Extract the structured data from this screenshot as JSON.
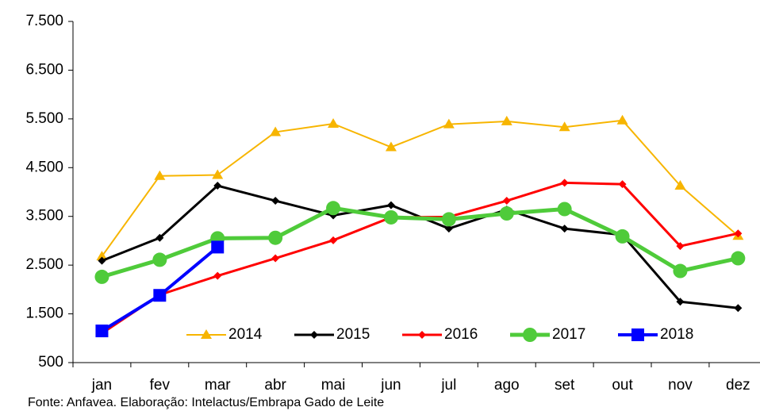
{
  "chart_data": {
    "type": "line",
    "categories": [
      "jan",
      "fev",
      "mar",
      "abr",
      "mai",
      "jun",
      "jul",
      "ago",
      "set",
      "out",
      "nov",
      "dez"
    ],
    "series": [
      {
        "name": "2014",
        "color": "#f7b500",
        "marker": "triangle",
        "values": [
          2680,
          4330,
          4350,
          5230,
          5400,
          4920,
          5390,
          5450,
          5330,
          5470,
          4130,
          3100
        ]
      },
      {
        "name": "2015",
        "color": "#000000",
        "marker": "diamond",
        "values": [
          2590,
          3060,
          4130,
          3820,
          3520,
          3730,
          3250,
          3640,
          3250,
          3120,
          1750,
          1620
        ]
      },
      {
        "name": "2016",
        "color": "#ff0000",
        "marker": "diamond",
        "values": [
          1100,
          1890,
          2280,
          2640,
          3010,
          3480,
          3490,
          3820,
          4190,
          4160,
          2890,
          3150
        ]
      },
      {
        "name": "2017",
        "color": "#4fcb3a",
        "marker": "circle",
        "values": [
          2260,
          2610,
          3050,
          3060,
          3670,
          3480,
          3440,
          3560,
          3650,
          3090,
          2380,
          2640
        ]
      },
      {
        "name": "2018",
        "color": "#0000ff",
        "marker": "square",
        "values": [
          1150,
          1880,
          2870,
          null,
          null,
          null,
          null,
          null,
          null,
          null,
          null,
          null
        ]
      }
    ],
    "ylim": [
      500,
      7500
    ],
    "yticks": [
      {
        "value": 500,
        "label": "500"
      },
      {
        "value": 1500,
        "label": "1.500"
      },
      {
        "value": 2500,
        "label": "2.500"
      },
      {
        "value": 3500,
        "label": "3.500"
      },
      {
        "value": 4500,
        "label": "4.500"
      },
      {
        "value": 5500,
        "label": "5.500"
      },
      {
        "value": 6500,
        "label": "6.500"
      },
      {
        "value": 7500,
        "label": "7.500"
      }
    ],
    "grid": false,
    "legend": "bottom",
    "source": "Fonte: Anfavea. Elaboração: Intelactus/Embrapa Gado de Leite"
  }
}
